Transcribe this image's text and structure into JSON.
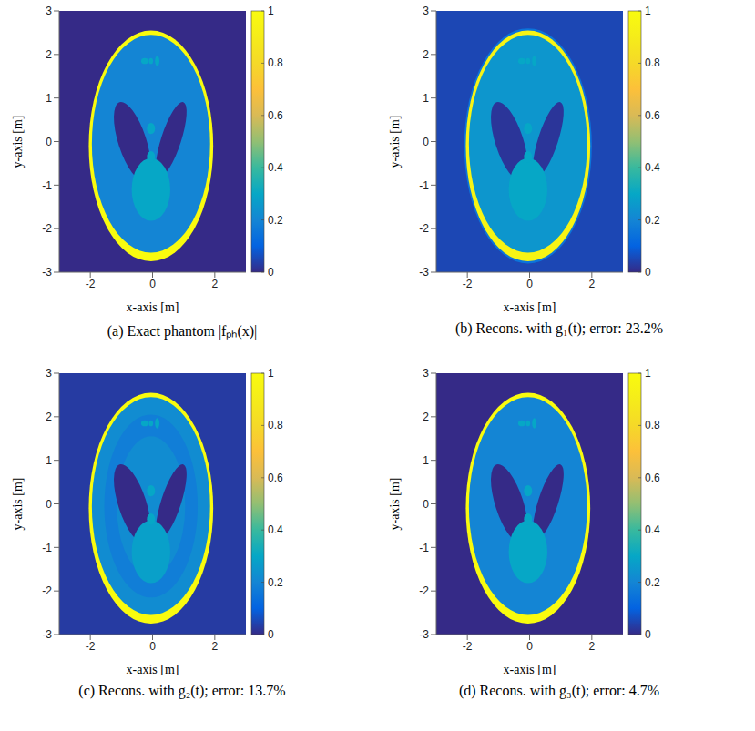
{
  "chart_data": [
    {
      "type": "heatmap",
      "title": "(a) Exact phantom |fₚₕ(x)|",
      "x_label": "x-axis [m]",
      "y_label": "y-axis [m]",
      "xlim": [
        -3,
        3
      ],
      "xticks": [
        -2,
        0,
        2
      ],
      "ylim": [
        -3,
        3
      ],
      "yticks": [
        -3,
        -2,
        -1,
        0,
        1,
        2,
        3
      ],
      "background": 0,
      "regions": [
        {
          "x": -0.05,
          "y": -0.1,
          "rx": 2.0,
          "ry": 2.65,
          "angle": 0,
          "value": 1
        },
        {
          "x": -0.05,
          "y": -0.05,
          "rx": 1.9,
          "ry": 2.5,
          "angle": 0,
          "value": 0.2
        },
        {
          "x": -0.65,
          "y": 0,
          "rx": 0.45,
          "ry": 0.95,
          "angle": 18,
          "value": 0
        },
        {
          "x": 0.6,
          "y": 0.05,
          "rx": 0.32,
          "ry": 0.9,
          "angle": -18,
          "value": 0
        },
        {
          "x": -0.05,
          "y": -1.1,
          "rx": 0.62,
          "ry": 0.72,
          "angle": 0,
          "value": 0.3
        },
        {
          "x": -0.05,
          "y": 0.3,
          "rx": 0.13,
          "ry": 0.13,
          "angle": 0,
          "value": 0.3
        },
        {
          "x": -0.05,
          "y": -0.35,
          "rx": 0.13,
          "ry": 0.13,
          "angle": 0,
          "value": 0.3
        },
        {
          "x": -0.25,
          "y": 1.85,
          "rx": 0.12,
          "ry": 0.07,
          "angle": 0,
          "value": 0.3
        },
        {
          "x": -0.05,
          "y": 1.85,
          "rx": 0.07,
          "ry": 0.07,
          "angle": 0,
          "value": 0.3
        },
        {
          "x": 0.15,
          "y": 1.85,
          "rx": 0.07,
          "ry": 0.12,
          "angle": 0,
          "value": 0.3
        }
      ],
      "colorbar": {
        "range": [
          0,
          1
        ],
        "ticks": [
          0,
          0.2,
          0.4,
          0.6,
          0.8,
          1
        ]
      }
    },
    {
      "type": "heatmap",
      "title": "(b) Recons. with g₁(t); error: 23.2%",
      "x_label": "x-axis [m]",
      "y_label": "y-axis [m]",
      "xlim": [
        -3,
        3
      ],
      "xticks": [
        -2,
        0,
        2
      ],
      "ylim": [
        -3,
        3
      ],
      "yticks": [
        -3,
        -2,
        -1,
        0,
        1,
        2,
        3
      ],
      "background": 0.05,
      "regions": [
        {
          "x": -0.05,
          "y": -0.1,
          "rx": 2.05,
          "ry": 2.7,
          "angle": 0,
          "value": 0.15
        },
        {
          "x": -0.05,
          "y": -0.1,
          "rx": 2.0,
          "ry": 2.65,
          "angle": 0,
          "value": 0.95
        },
        {
          "x": -0.05,
          "y": -0.05,
          "rx": 1.9,
          "ry": 2.5,
          "angle": 0,
          "value": 0.25
        },
        {
          "x": -0.65,
          "y": 0,
          "rx": 0.45,
          "ry": 0.95,
          "angle": 18,
          "value": 0.02
        },
        {
          "x": 0.6,
          "y": 0.05,
          "rx": 0.32,
          "ry": 0.9,
          "angle": -18,
          "value": 0.02
        },
        {
          "x": -0.05,
          "y": -1.1,
          "rx": 0.62,
          "ry": 0.72,
          "angle": 0,
          "value": 0.3
        },
        {
          "x": -0.05,
          "y": 0.3,
          "rx": 0.13,
          "ry": 0.13,
          "angle": 0,
          "value": 0.3
        },
        {
          "x": -0.05,
          "y": -0.35,
          "rx": 0.13,
          "ry": 0.13,
          "angle": 0,
          "value": 0.3
        },
        {
          "x": -0.25,
          "y": 1.85,
          "rx": 0.12,
          "ry": 0.07,
          "angle": 0,
          "value": 0.3
        },
        {
          "x": -0.05,
          "y": 1.85,
          "rx": 0.07,
          "ry": 0.07,
          "angle": 0,
          "value": 0.3
        },
        {
          "x": 0.15,
          "y": 1.85,
          "rx": 0.07,
          "ry": 0.12,
          "angle": 0,
          "value": 0.3
        }
      ],
      "colorbar": {
        "range": [
          0,
          1
        ],
        "ticks": [
          0,
          0.2,
          0.4,
          0.6,
          0.8,
          1
        ]
      }
    },
    {
      "type": "heatmap",
      "title": "(c) Recons. with g₂(t); error: 13.7%",
      "x_label": "x-axis [m]",
      "y_label": "y-axis [m]",
      "xlim": [
        -3,
        3
      ],
      "xticks": [
        -2,
        0,
        2
      ],
      "ylim": [
        -3,
        3
      ],
      "yticks": [
        -3,
        -2,
        -1,
        0,
        1,
        2,
        3
      ],
      "background": 0.03,
      "regions": [
        {
          "x": -0.05,
          "y": -0.1,
          "rx": 2.0,
          "ry": 2.65,
          "angle": 0,
          "value": 1
        },
        {
          "x": -0.05,
          "y": -0.05,
          "rx": 1.9,
          "ry": 2.5,
          "angle": 0,
          "value": 0.22
        },
        {
          "x": -0.05,
          "y": -0.05,
          "rx": 1.5,
          "ry": 2.1,
          "angle": 0,
          "value": 0.18
        },
        {
          "x": -0.05,
          "y": -0.05,
          "rx": 1.1,
          "ry": 1.6,
          "angle": 0,
          "value": 0.22
        },
        {
          "x": -0.65,
          "y": 0,
          "rx": 0.45,
          "ry": 0.95,
          "angle": 18,
          "value": 0
        },
        {
          "x": 0.6,
          "y": 0.05,
          "rx": 0.32,
          "ry": 0.9,
          "angle": -18,
          "value": 0
        },
        {
          "x": -0.05,
          "y": -1.1,
          "rx": 0.62,
          "ry": 0.72,
          "angle": 0,
          "value": 0.28
        },
        {
          "x": -0.05,
          "y": 0.3,
          "rx": 0.13,
          "ry": 0.13,
          "angle": 0,
          "value": 0.3
        },
        {
          "x": -0.05,
          "y": -0.35,
          "rx": 0.13,
          "ry": 0.13,
          "angle": 0,
          "value": 0.3
        },
        {
          "x": -0.25,
          "y": 1.85,
          "rx": 0.12,
          "ry": 0.07,
          "angle": 0,
          "value": 0.3
        },
        {
          "x": -0.05,
          "y": 1.85,
          "rx": 0.07,
          "ry": 0.07,
          "angle": 0,
          "value": 0.3
        },
        {
          "x": 0.15,
          "y": 1.85,
          "rx": 0.07,
          "ry": 0.12,
          "angle": 0,
          "value": 0.3
        }
      ],
      "colorbar": {
        "range": [
          0,
          1
        ],
        "ticks": [
          0,
          0.2,
          0.4,
          0.6,
          0.8,
          1
        ]
      }
    },
    {
      "type": "heatmap",
      "title": "(d) Recons. with g₃(t); error: 4.7%",
      "x_label": "x-axis [m]",
      "y_label": "y-axis [m]",
      "xlim": [
        -3,
        3
      ],
      "xticks": [
        -2,
        0,
        2
      ],
      "ylim": [
        -3,
        3
      ],
      "yticks": [
        -3,
        -2,
        -1,
        0,
        1,
        2,
        3
      ],
      "background": 0,
      "regions": [
        {
          "x": -0.05,
          "y": -0.1,
          "rx": 2.0,
          "ry": 2.65,
          "angle": 0,
          "value": 1
        },
        {
          "x": -0.05,
          "y": -0.05,
          "rx": 1.9,
          "ry": 2.5,
          "angle": 0,
          "value": 0.2
        },
        {
          "x": -0.65,
          "y": 0,
          "rx": 0.45,
          "ry": 0.95,
          "angle": 18,
          "value": 0
        },
        {
          "x": 0.6,
          "y": 0.05,
          "rx": 0.32,
          "ry": 0.9,
          "angle": -18,
          "value": 0
        },
        {
          "x": -0.05,
          "y": -1.1,
          "rx": 0.62,
          "ry": 0.72,
          "angle": 0,
          "value": 0.3
        },
        {
          "x": -0.05,
          "y": 0.3,
          "rx": 0.13,
          "ry": 0.13,
          "angle": 0,
          "value": 0.3
        },
        {
          "x": -0.05,
          "y": -0.35,
          "rx": 0.13,
          "ry": 0.13,
          "angle": 0,
          "value": 0.3
        },
        {
          "x": -0.25,
          "y": 1.85,
          "rx": 0.12,
          "ry": 0.07,
          "angle": 0,
          "value": 0.3
        },
        {
          "x": -0.05,
          "y": 1.85,
          "rx": 0.07,
          "ry": 0.07,
          "angle": 0,
          "value": 0.3
        },
        {
          "x": 0.15,
          "y": 1.85,
          "rx": 0.07,
          "ry": 0.12,
          "angle": 0,
          "value": 0.3
        }
      ],
      "colorbar": {
        "range": [
          0,
          1
        ],
        "ticks": [
          0,
          0.2,
          0.4,
          0.6,
          0.8,
          1
        ]
      }
    }
  ]
}
